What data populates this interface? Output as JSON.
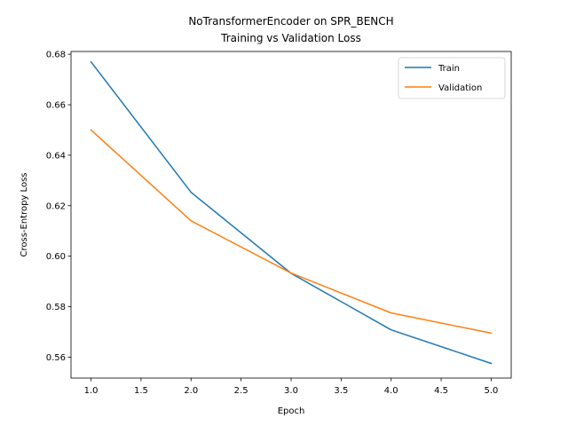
{
  "chart_data": {
    "type": "line",
    "title_line1": "NoTransformerEncoder on SPR_BENCH",
    "title_line2": "Training vs Validation Loss",
    "xlabel": "Epoch",
    "ylabel": "Cross-Entropy Loss",
    "x": [
      1,
      2,
      3,
      4,
      5
    ],
    "series": [
      {
        "name": "Train",
        "color": "#1f77b4",
        "values": [
          0.677,
          0.6253,
          0.5932,
          0.5708,
          0.5575
        ]
      },
      {
        "name": "Validation",
        "color": "#ff7f0e",
        "values": [
          0.65,
          0.614,
          0.5933,
          0.5775,
          0.5695
        ]
      }
    ],
    "xlim": [
      0.8,
      5.2
    ],
    "ylim": [
      0.5517,
      0.6811
    ],
    "xticks": [
      "1.0",
      "1.5",
      "2.0",
      "2.5",
      "3.0",
      "3.5",
      "4.0",
      "4.5",
      "5.0"
    ],
    "yticks": [
      "0.56",
      "0.58",
      "0.60",
      "0.62",
      "0.64",
      "0.66",
      "0.68"
    ],
    "grid": false,
    "legend_position": "top-right"
  }
}
